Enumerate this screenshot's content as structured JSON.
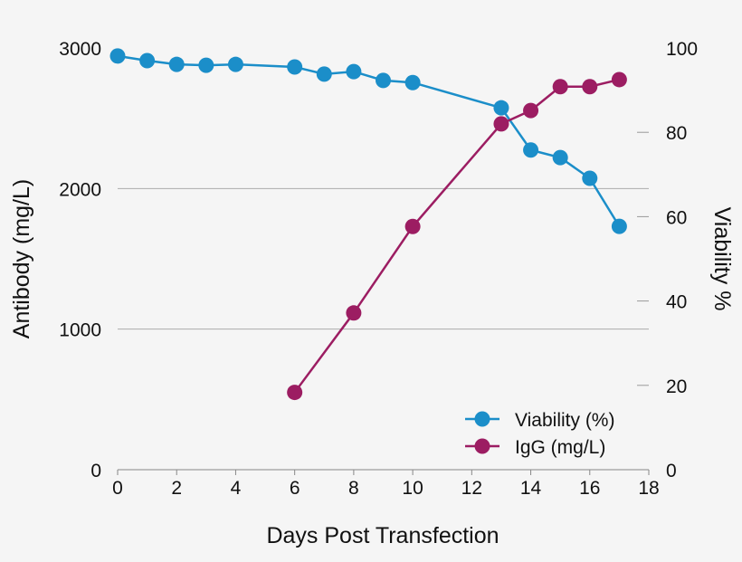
{
  "chart_data": {
    "type": "line",
    "title": "",
    "xlabel": "Days Post Transfection",
    "ylabel": "Antibody (mg/L)",
    "y2label": "Viability %",
    "xlim": [
      0,
      18
    ],
    "ylim": [
      0,
      3000
    ],
    "y2lim": [
      0,
      100
    ],
    "x_ticks": [
      "0",
      "2",
      "4",
      "6",
      "8",
      "10",
      "12",
      "14",
      "16",
      "18"
    ],
    "y_ticks": [
      "0",
      "1000",
      "2000",
      "3000"
    ],
    "y2_ticks": [
      "0",
      "20",
      "40",
      "60",
      "80",
      "100"
    ],
    "grid": "horizontal at left-axis ticks",
    "legend_position": "bottom-right",
    "colors": {
      "viability": "#1b8ec9",
      "igg": "#9c1d62",
      "grid": "#aaaaaa"
    },
    "series": [
      {
        "name": "Viability (%)",
        "axis": "right",
        "x": [
          0,
          1,
          2,
          3,
          4,
          6,
          7,
          8,
          9,
          10,
          13,
          14,
          15,
          16,
          17
        ],
        "values": [
          98.1,
          97.0,
          96.1,
          95.9,
          96.1,
          95.5,
          93.8,
          94.4,
          92.3,
          91.8,
          85.8,
          75.8,
          74.0,
          69.1,
          57.7
        ]
      },
      {
        "name": "IgG (mg/L)",
        "axis": "left",
        "x": [
          6,
          8,
          10,
          13,
          14,
          15,
          16,
          17
        ],
        "values": [
          550,
          1115,
          1730,
          2460,
          2555,
          2725,
          2725,
          2775
        ]
      }
    ]
  }
}
